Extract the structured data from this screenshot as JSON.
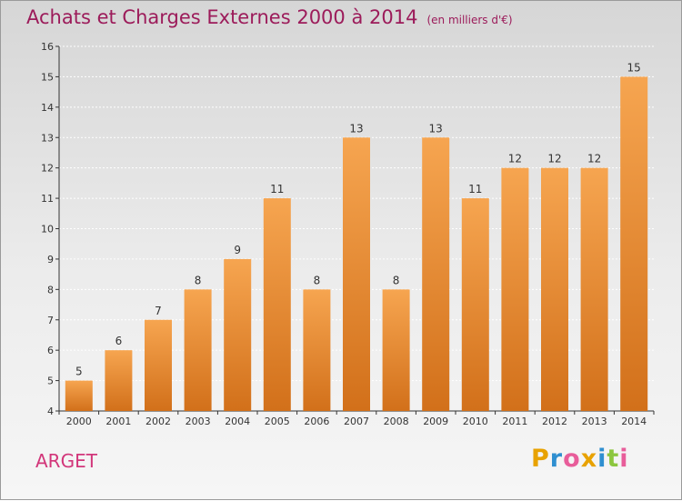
{
  "header": {
    "title": "Achats et Charges Externes 2000 à 2014",
    "unit": "(en milliers d'€)"
  },
  "footer": {
    "commune": "ARGET",
    "logo": {
      "letters": [
        "P",
        "r",
        "o",
        "x",
        "i",
        "t",
        "i"
      ],
      "colors": [
        "#e8a200",
        "#2f8fd0",
        "#e85d9a",
        "#e8a200",
        "#2f8fd0",
        "#8cc63f",
        "#e85d9a"
      ]
    }
  },
  "colors": {
    "bar_top": "#f6a550",
    "bar_bottom": "#d2701a",
    "axis": "#333333",
    "grid": "#ffffff",
    "title": "#9c1b5a",
    "commune": "#d2367a"
  },
  "chart_data": {
    "type": "bar",
    "title": "Achats et Charges Externes 2000 à 2014",
    "xlabel": "",
    "ylabel": "",
    "categories": [
      "2000",
      "2001",
      "2002",
      "2003",
      "2004",
      "2005",
      "2006",
      "2007",
      "2008",
      "2009",
      "2010",
      "2011",
      "2012",
      "2013",
      "2014"
    ],
    "values": [
      5,
      6,
      7,
      8,
      9,
      11,
      8,
      13,
      8,
      13,
      11,
      12,
      12,
      12,
      15
    ],
    "value_labels": [
      "5",
      "6",
      "7",
      "8",
      "9",
      "11",
      "8",
      "13",
      "8",
      "13",
      "11",
      "12",
      "12",
      "12",
      "15"
    ],
    "ylim": [
      4,
      16
    ],
    "yticks": [
      4,
      5,
      6,
      7,
      8,
      9,
      10,
      11,
      12,
      13,
      14,
      15,
      16
    ],
    "grid": true
  }
}
